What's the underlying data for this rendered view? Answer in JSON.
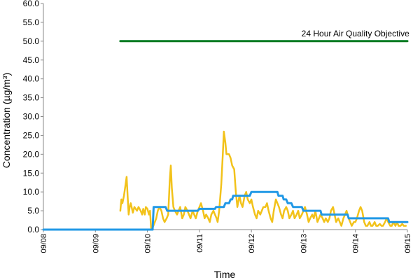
{
  "chart_data": {
    "type": "line",
    "xlabel": "Time",
    "ylabel": "Concentration (µg/m³)",
    "x_tick_labels": [
      "09/08",
      "09/09",
      "09/10",
      "09/11",
      "09/12",
      "09/13",
      "09/14",
      "09/15"
    ],
    "y_tick_labels": [
      "0.0",
      "5.0",
      "10.0",
      "15.0",
      "20.0",
      "25.0",
      "30.0",
      "35.0",
      "40.0",
      "45.0",
      "50.0",
      "55.0",
      "60.0"
    ],
    "ylim": [
      0,
      60
    ],
    "xlim_days": [
      8,
      15
    ],
    "grid": false,
    "legend": "none",
    "annotations": [
      {
        "text": "24 Hour Air Quality Objective",
        "x": 14.0,
        "y": 52
      }
    ],
    "series": [
      {
        "color": "#f2c21a",
        "kind": "hourly",
        "points": [
          [
            9.48,
            5
          ],
          [
            9.5,
            8
          ],
          [
            9.52,
            7
          ],
          [
            9.55,
            9
          ],
          [
            9.58,
            12
          ],
          [
            9.6,
            14
          ],
          [
            9.62,
            9
          ],
          [
            9.64,
            4
          ],
          [
            9.66,
            6
          ],
          [
            9.68,
            7
          ],
          [
            9.72,
            4.5
          ],
          [
            9.75,
            6
          ],
          [
            9.8,
            5
          ],
          [
            9.83,
            6
          ],
          [
            9.87,
            5
          ],
          [
            9.9,
            4
          ],
          [
            9.92,
            5.5
          ],
          [
            9.95,
            4
          ],
          [
            9.97,
            6
          ],
          [
            10.0,
            5.5
          ],
          [
            10.03,
            4
          ],
          [
            10.05,
            5
          ],
          [
            10.07,
            0.5
          ],
          [
            10.1,
            0.5
          ],
          [
            10.13,
            1.5
          ],
          [
            10.17,
            3
          ],
          [
            10.2,
            5
          ],
          [
            10.23,
            6
          ],
          [
            10.27,
            5
          ],
          [
            10.3,
            3
          ],
          [
            10.33,
            2
          ],
          [
            10.37,
            3
          ],
          [
            10.4,
            4
          ],
          [
            10.43,
            13
          ],
          [
            10.45,
            17
          ],
          [
            10.47,
            11
          ],
          [
            10.5,
            6
          ],
          [
            10.53,
            5
          ],
          [
            10.57,
            4
          ],
          [
            10.6,
            5
          ],
          [
            10.63,
            6
          ],
          [
            10.67,
            3
          ],
          [
            10.7,
            4
          ],
          [
            10.73,
            6
          ],
          [
            10.77,
            5
          ],
          [
            10.8,
            4
          ],
          [
            10.83,
            3
          ],
          [
            10.87,
            5
          ],
          [
            10.9,
            4
          ],
          [
            10.93,
            3
          ],
          [
            10.97,
            5
          ],
          [
            11.0,
            6
          ],
          [
            11.03,
            7
          ],
          [
            11.07,
            5
          ],
          [
            11.1,
            3
          ],
          [
            11.13,
            4
          ],
          [
            11.17,
            3
          ],
          [
            11.2,
            2
          ],
          [
            11.23,
            4
          ],
          [
            11.27,
            5
          ],
          [
            11.3,
            4
          ],
          [
            11.33,
            3
          ],
          [
            11.35,
            2
          ],
          [
            11.38,
            5
          ],
          [
            11.42,
            12
          ],
          [
            11.45,
            20
          ],
          [
            11.47,
            26
          ],
          [
            11.5,
            23
          ],
          [
            11.52,
            20
          ],
          [
            11.57,
            20
          ],
          [
            11.6,
            19
          ],
          [
            11.63,
            17
          ],
          [
            11.67,
            16
          ],
          [
            11.7,
            10
          ],
          [
            11.73,
            6
          ],
          [
            11.77,
            9
          ],
          [
            11.8,
            7
          ],
          [
            11.83,
            6
          ],
          [
            11.87,
            9
          ],
          [
            11.9,
            10
          ],
          [
            11.93,
            8
          ],
          [
            11.97,
            7
          ],
          [
            12.0,
            8
          ],
          [
            12.03,
            6
          ],
          [
            12.07,
            4
          ],
          [
            12.1,
            3
          ],
          [
            12.13,
            5
          ],
          [
            12.17,
            4
          ],
          [
            12.2,
            5
          ],
          [
            12.23,
            6
          ],
          [
            12.27,
            6
          ],
          [
            12.3,
            7
          ],
          [
            12.33,
            5
          ],
          [
            12.37,
            3
          ],
          [
            12.4,
            2
          ],
          [
            12.43,
            5
          ],
          [
            12.47,
            8
          ],
          [
            12.5,
            7
          ],
          [
            12.53,
            6
          ],
          [
            12.57,
            4
          ],
          [
            12.6,
            3
          ],
          [
            12.63,
            5
          ],
          [
            12.67,
            6
          ],
          [
            12.7,
            5
          ],
          [
            12.73,
            3
          ],
          [
            12.77,
            4
          ],
          [
            12.8,
            5
          ],
          [
            12.83,
            3
          ],
          [
            12.87,
            4
          ],
          [
            12.9,
            5
          ],
          [
            12.93,
            3
          ],
          [
            12.97,
            4
          ],
          [
            13.0,
            5
          ],
          [
            13.03,
            6
          ],
          [
            13.07,
            4
          ],
          [
            13.1,
            2
          ],
          [
            13.13,
            3
          ],
          [
            13.17,
            4
          ],
          [
            13.2,
            3
          ],
          [
            13.23,
            5
          ],
          [
            13.27,
            2
          ],
          [
            13.3,
            3
          ],
          [
            13.33,
            4
          ],
          [
            13.37,
            3
          ],
          [
            13.4,
            2
          ],
          [
            13.43,
            3
          ],
          [
            13.47,
            2
          ],
          [
            13.5,
            3
          ],
          [
            13.53,
            5
          ],
          [
            13.57,
            6
          ],
          [
            13.6,
            4
          ],
          [
            13.63,
            2
          ],
          [
            13.67,
            3
          ],
          [
            13.7,
            2
          ],
          [
            13.73,
            1
          ],
          [
            13.77,
            3
          ],
          [
            13.8,
            4
          ],
          [
            13.83,
            5
          ],
          [
            13.87,
            3
          ],
          [
            13.9,
            2
          ],
          [
            13.93,
            1
          ],
          [
            13.97,
            2
          ],
          [
            14.0,
            2
          ],
          [
            14.03,
            3
          ],
          [
            14.07,
            5
          ],
          [
            14.1,
            6
          ],
          [
            14.13,
            5
          ],
          [
            14.17,
            2
          ],
          [
            14.2,
            1
          ],
          [
            14.23,
            1
          ],
          [
            14.27,
            2
          ],
          [
            14.3,
            1
          ],
          [
            14.33,
            1
          ],
          [
            14.37,
            2
          ],
          [
            14.4,
            1
          ],
          [
            14.43,
            1
          ],
          [
            14.47,
            1.5
          ],
          [
            14.5,
            1
          ],
          [
            14.53,
            1
          ],
          [
            14.57,
            2
          ],
          [
            14.6,
            3
          ],
          [
            14.63,
            2
          ],
          [
            14.67,
            1
          ],
          [
            14.7,
            1
          ],
          [
            14.73,
            2
          ],
          [
            14.77,
            1
          ],
          [
            14.8,
            2
          ],
          [
            14.83,
            1
          ],
          [
            14.87,
            1
          ],
          [
            14.9,
            1.5
          ],
          [
            14.93,
            1
          ],
          [
            14.97,
            1
          ]
        ]
      },
      {
        "color": "#2299e6",
        "kind": "running-24h-mean",
        "points": [
          [
            8.0,
            0
          ],
          [
            10.1,
            0
          ],
          [
            10.12,
            6
          ],
          [
            10.35,
            6
          ],
          [
            10.38,
            5
          ],
          [
            10.97,
            5
          ],
          [
            11.0,
            5.5
          ],
          [
            11.3,
            5.5
          ],
          [
            11.32,
            6
          ],
          [
            11.47,
            6
          ],
          [
            11.5,
            7
          ],
          [
            11.57,
            7
          ],
          [
            11.6,
            8
          ],
          [
            11.63,
            8
          ],
          [
            11.65,
            9
          ],
          [
            11.97,
            9
          ],
          [
            12.0,
            10
          ],
          [
            12.5,
            10
          ],
          [
            12.52,
            9
          ],
          [
            12.6,
            9
          ],
          [
            12.62,
            8
          ],
          [
            12.67,
            8
          ],
          [
            12.7,
            7
          ],
          [
            12.77,
            7
          ],
          [
            12.8,
            6
          ],
          [
            12.97,
            6
          ],
          [
            13.0,
            5
          ],
          [
            13.33,
            5
          ],
          [
            13.35,
            4
          ],
          [
            13.85,
            4
          ],
          [
            13.87,
            3
          ],
          [
            14.47,
            3
          ],
          [
            14.5,
            3
          ],
          [
            14.63,
            3
          ],
          [
            14.65,
            2
          ],
          [
            15.0,
            2
          ]
        ]
      },
      {
        "color": "#007a20",
        "kind": "objective",
        "points": [
          [
            9.48,
            50
          ],
          [
            15.0,
            50
          ]
        ]
      }
    ]
  }
}
